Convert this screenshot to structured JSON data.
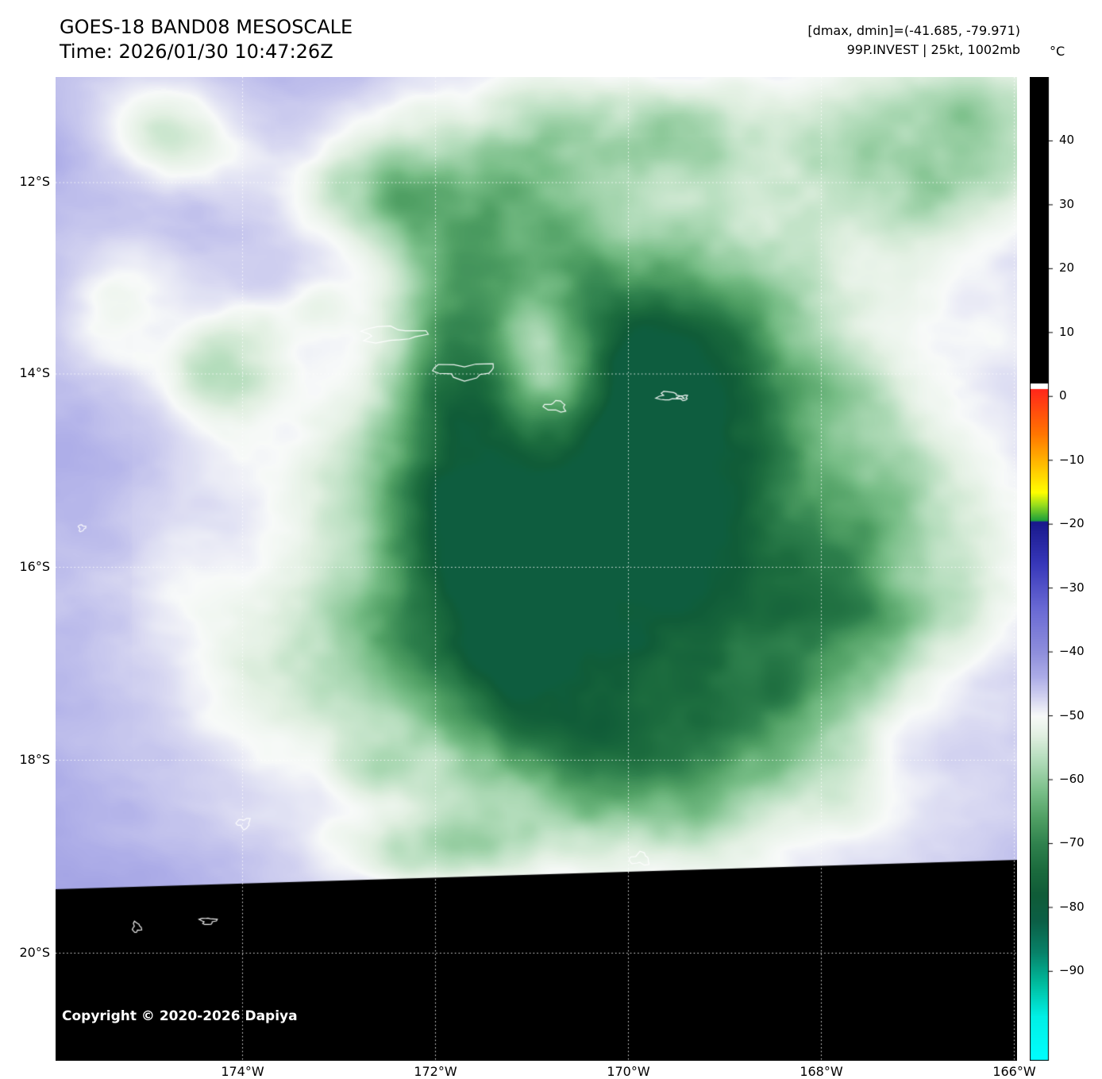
{
  "header": {
    "title": "GOES-18 BAND08 MESOSCALE",
    "time_line": "Time: 2026/01/30 10:47:26Z",
    "dmax_dmin": "[dmax, dmin]=(-41.685, -79.971)",
    "storm_info": "99P.INVEST | 25kt, 1002mb"
  },
  "map": {
    "lat_labels": [
      "12°S",
      "14°S",
      "16°S",
      "18°S",
      "20°S"
    ],
    "lon_labels": [
      "174°W",
      "172°W",
      "170°W",
      "168°W",
      "166°W"
    ],
    "copyright": "Copyright © 2020-2026 Dapiya"
  },
  "colorbar": {
    "unit": "°C",
    "tick_labels": [
      "40",
      "30",
      "20",
      "10",
      "0",
      "−10",
      "−20",
      "−30",
      "−40",
      "−50",
      "−60",
      "−70",
      "−80",
      "−90"
    ],
    "tick_values": [
      40,
      30,
      20,
      10,
      0,
      -10,
      -20,
      -30,
      -40,
      -50,
      -60,
      -70,
      -80,
      -90
    ]
  },
  "chart_data": {
    "type": "heatmap",
    "title": "GOES-18 BAND08 MESOSCALE",
    "subtitle": "Time: 2026/01/30 10:47:26Z",
    "satellite": "GOES-18",
    "band": "BAND08",
    "sector": "MESOSCALE",
    "time_utc": "2026/01/30 10:47:26Z",
    "annotations": [
      "[dmax, dmin]=(-41.685, -79.971)",
      "99P.INVEST | 25kt, 1002mb"
    ],
    "storm": {
      "designation": "99P.INVEST",
      "intensity_kt": 25,
      "pressure_mb": 1002
    },
    "dmax_c": -41.685,
    "dmin_c": -79.971,
    "axes": {
      "lat_ticks_s": [
        12,
        14,
        16,
        18,
        20
      ],
      "lon_ticks_w": [
        174,
        172,
        170,
        168,
        166
      ],
      "lat_range_deg_s": [
        10.9,
        21.2
      ],
      "lon_range_deg_w": [
        175.9,
        166.0
      ],
      "grid": true,
      "grid_style": "dotted-white"
    },
    "colorbar": {
      "unit": "°C",
      "ticks_c": [
        40,
        30,
        20,
        10,
        0,
        -10,
        -20,
        -30,
        -40,
        -50,
        -60,
        -70,
        -80,
        -90
      ],
      "range_c": [
        50,
        -104
      ],
      "black_above_c": 1.5
    },
    "colormap_stops_c": [
      [
        2,
        "#ff1e1e"
      ],
      [
        -6,
        "#ff7800"
      ],
      [
        -12,
        "#ffd200"
      ],
      [
        -15,
        "#ffff00"
      ],
      [
        -17,
        "#96dc1e"
      ],
      [
        -19.4,
        "#1ea03c"
      ],
      [
        -19.6,
        "#19198c"
      ],
      [
        -26,
        "#3737b9"
      ],
      [
        -33,
        "#6969d4"
      ],
      [
        -40,
        "#8f8fdc"
      ],
      [
        -44,
        "#aeaee8"
      ],
      [
        -47,
        "#d2d2f0"
      ],
      [
        -50,
        "#f8faf9"
      ],
      [
        -53,
        "#e2f0e2"
      ],
      [
        -57,
        "#b2dcba"
      ],
      [
        -62,
        "#78be87"
      ],
      [
        -66,
        "#50a064"
      ],
      [
        -70,
        "#30824e"
      ],
      [
        -74,
        "#1c6c3e"
      ],
      [
        -78,
        "#105c38"
      ],
      [
        -82,
        "#0c5f46"
      ],
      [
        -87,
        "#088269"
      ],
      [
        -92,
        "#00bea0"
      ],
      [
        -97,
        "#00f0e6"
      ],
      [
        -104,
        "#00ffff"
      ]
    ],
    "features": {
      "cold_cloud_mass_center": {
        "lon_w": 169.9,
        "lat_s": 16.0
      },
      "coldest_temp_c": -79.971,
      "warmest_temp_c": -41.685,
      "coastline_outlines": true,
      "no_data_region": "black wedge across bottom of scene"
    }
  }
}
